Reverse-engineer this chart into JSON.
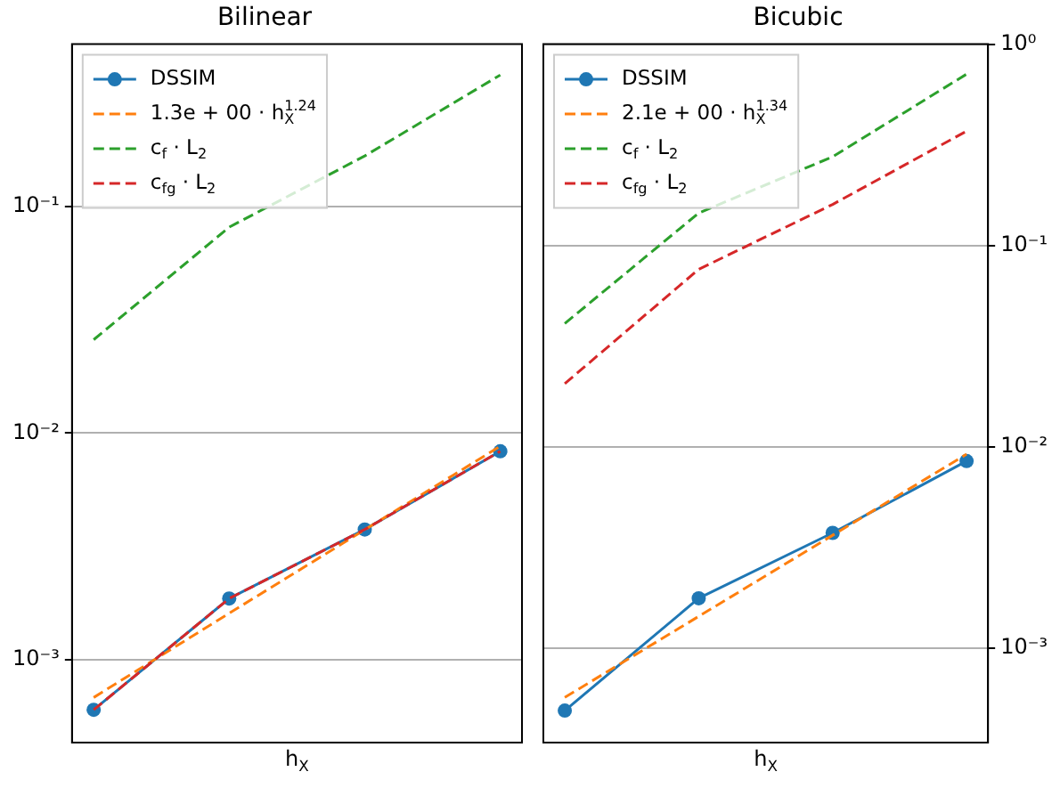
{
  "chart_data": [
    {
      "type": "line",
      "title": "Bilinear",
      "xlabel": "h$_{X}$",
      "categories": [
        null,
        null,
        null,
        null
      ],
      "log": "y",
      "ylim": [
        0.00043,
        0.52
      ],
      "yticks": [
        {
          "value": 0.001,
          "label": "10⁻³"
        },
        {
          "value": 0.01,
          "label": "10⁻²"
        },
        {
          "value": 0.1,
          "label": "10⁻¹"
        }
      ],
      "grid": "y",
      "legend": "top left",
      "tick_labels": "y",
      "series": [
        {
          "name": "DSSIM",
          "color": "#1f77b4",
          "marker": "circle",
          "line_style": "solid",
          "values": [
            0.0006,
            0.00186,
            0.00375,
            0.0083
          ]
        },
        {
          "name": "1.3e + 00 · h$_{X}$$^{1.24}$",
          "color": "#ff7f0e",
          "marker": "none",
          "line_style": "dashed",
          "values": [
            0.00068,
            0.0016,
            0.00374,
            0.00875
          ]
        },
        {
          "name": "c$_{f}$ · L$_{2}$",
          "color": "#2ca02c",
          "marker": "none",
          "line_style": "dashed",
          "values": [
            0.0258,
            0.081,
            0.167,
            0.38
          ]
        },
        {
          "name": "c$_{fg}$ · L$_{2}$",
          "color": "#d62728",
          "marker": "none",
          "line_style": "dashed",
          "values": [
            0.0006,
            0.00186,
            0.00375,
            0.0083
          ]
        }
      ]
    },
    {
      "type": "line",
      "title": "Bicubic",
      "xlabel": "h$_{X}$",
      "categories": [
        null,
        null,
        null,
        null
      ],
      "log": "y",
      "ylim": [
        0.00034,
        1
      ],
      "yticks": [
        {
          "value": 0.001,
          "label": "10⁻³"
        },
        {
          "value": 0.01,
          "label": "10⁻²"
        },
        {
          "value": 0.1,
          "label": "10⁻¹"
        },
        {
          "value": 1,
          "label": "10⁰"
        }
      ],
      "grid": "y",
      "legend": "top left",
      "tick_labels": "y",
      "series": [
        {
          "name": "DSSIM",
          "color": "#1f77b4",
          "marker": "circle",
          "line_style": "solid",
          "values": [
            0.00049,
            0.00177,
            0.00374,
            0.0085
          ]
        },
        {
          "name": "2.1e + 00 · h$_{X}$$^{1.34}$",
          "color": "#ff7f0e",
          "marker": "none",
          "line_style": "dashed",
          "values": [
            0.00057,
            0.00144,
            0.00364,
            0.0092
          ]
        },
        {
          "name": "c$_{f}$ · L$_{2}$",
          "color": "#2ca02c",
          "marker": "none",
          "line_style": "dashed",
          "values": [
            0.041,
            0.145,
            0.276,
            0.71
          ]
        },
        {
          "name": "c$_{fg}$ · L$_{2}$",
          "color": "#d62728",
          "marker": "none",
          "line_style": "dashed",
          "values": [
            0.0206,
            0.0762,
            0.16,
            0.37
          ]
        }
      ]
    }
  ]
}
